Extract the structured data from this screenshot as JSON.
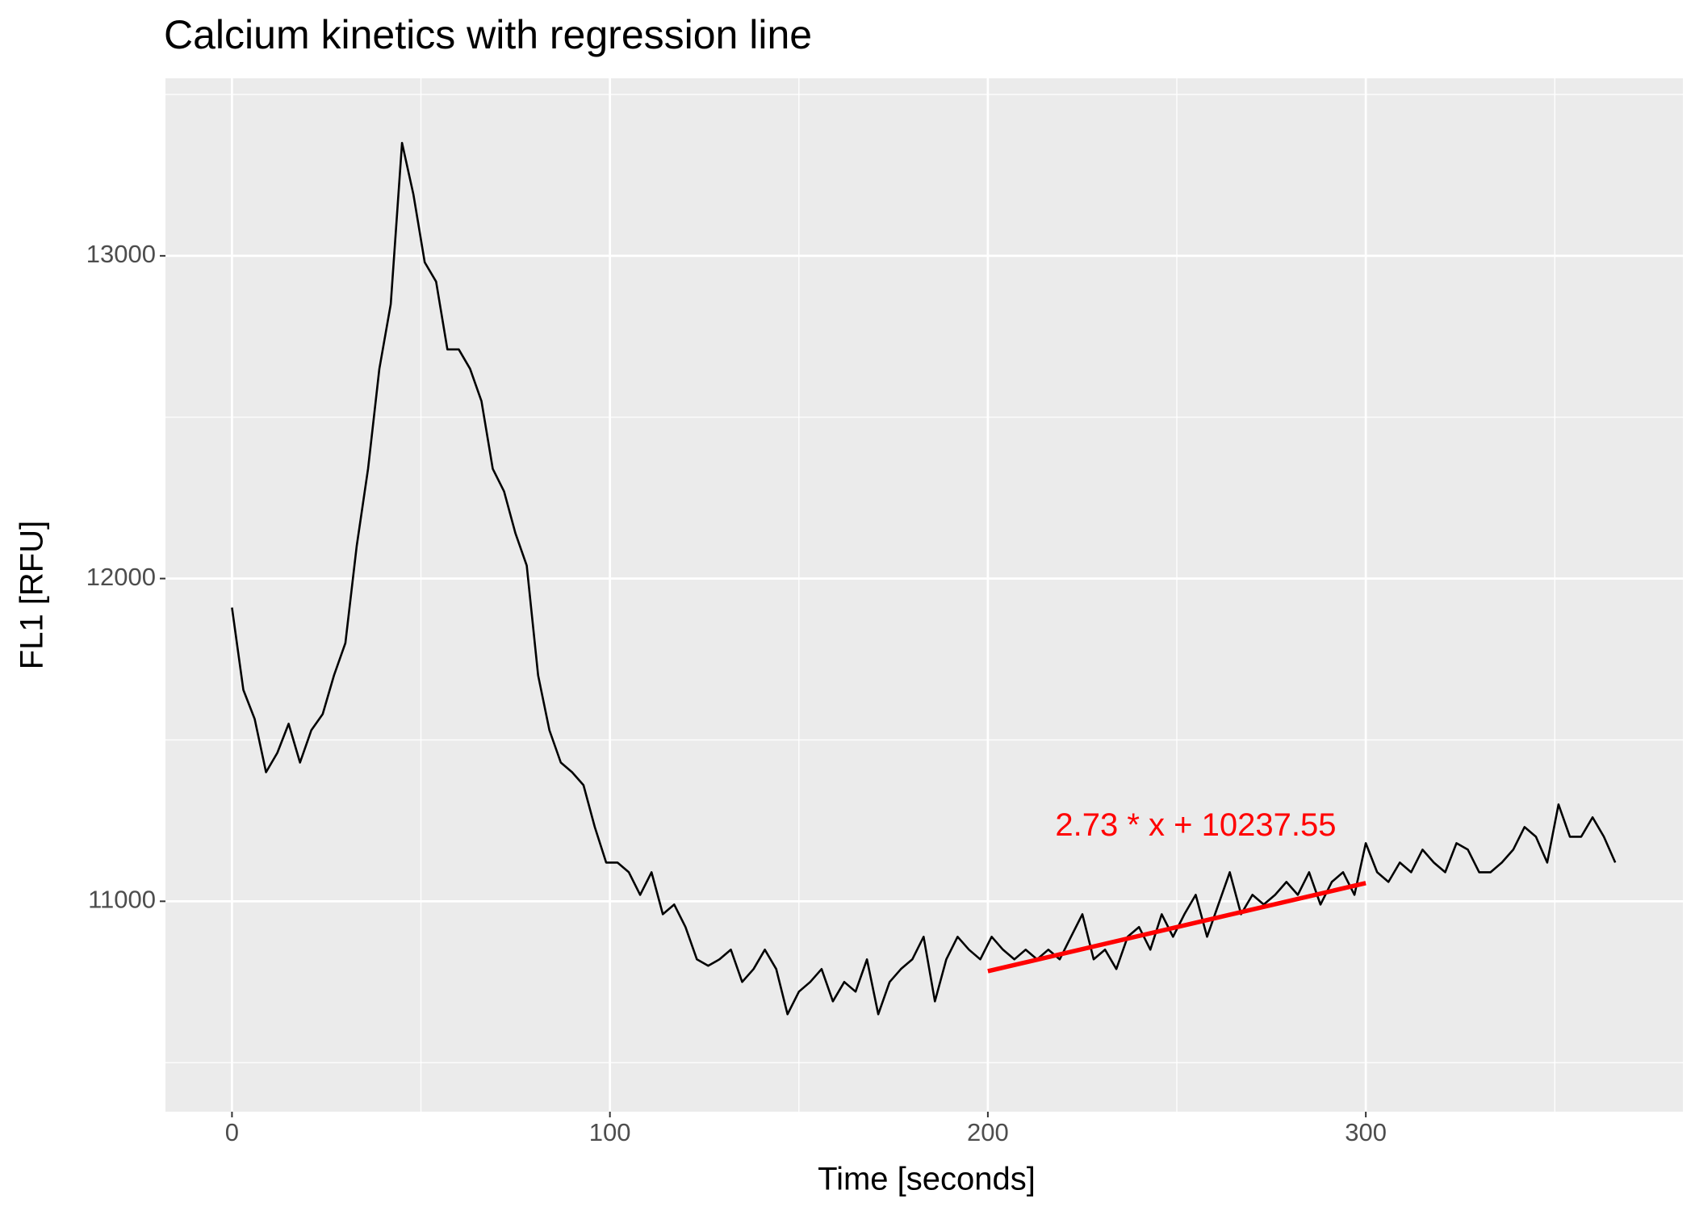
{
  "chart_data": {
    "type": "line",
    "title": "Calcium kinetics with regression line",
    "x_label": "Time [seconds]",
    "y_label": "FL1 [RFU]",
    "xlim": [
      -17.6,
      383.9
    ],
    "ylim": [
      10348,
      13550
    ],
    "xticks": [
      0,
      100,
      200,
      300
    ],
    "yticks": [
      11000,
      12000,
      13000
    ],
    "grid": true,
    "series": [
      {
        "name": "FL1",
        "color": "#000000",
        "x": [
          0,
          3,
          6,
          9,
          12,
          15,
          18,
          21,
          24,
          27,
          30,
          33,
          36,
          39,
          42,
          45,
          48,
          51,
          54,
          57,
          60,
          63,
          66,
          69,
          72,
          75,
          78,
          81,
          84,
          87,
          90,
          93,
          96,
          99,
          102,
          105,
          108,
          111,
          114,
          117,
          120,
          123,
          126,
          129,
          132,
          135,
          138,
          141,
          144,
          147,
          150,
          153,
          156,
          159,
          162,
          165,
          168,
          171,
          174,
          177,
          180,
          183,
          186,
          189,
          192,
          195,
          198,
          201,
          204,
          207,
          210,
          213,
          216,
          219,
          222,
          225,
          228,
          231,
          234,
          237,
          240,
          243,
          246,
          249,
          252,
          255,
          258,
          261,
          264,
          267,
          270,
          273,
          276,
          279,
          282,
          285,
          288,
          291,
          294,
          297,
          300,
          303,
          306,
          309,
          312,
          315,
          318,
          321,
          324,
          327,
          330,
          333,
          336,
          339,
          342,
          345,
          348,
          351,
          354,
          357,
          360,
          363,
          366
        ],
        "values": [
          11910,
          11655,
          11565,
          11400,
          11460,
          11550,
          11430,
          11530,
          11580,
          11700,
          11800,
          12100,
          12340,
          12650,
          12850,
          13350,
          13190,
          12980,
          12920,
          12710,
          12710,
          12650,
          12550,
          12340,
          12270,
          12140,
          12040,
          11700,
          11530,
          11430,
          11400,
          11360,
          11230,
          11120,
          11120,
          11090,
          11020,
          11090,
          10960,
          10990,
          10920,
          10820,
          10800,
          10820,
          10850,
          10750,
          10790,
          10850,
          10790,
          10650,
          10720,
          10750,
          10790,
          10690,
          10750,
          10720,
          10820,
          10650,
          10750,
          10790,
          10820,
          10890,
          10690,
          10820,
          10890,
          10850,
          10820,
          10890,
          10850,
          10820,
          10850,
          10820,
          10850,
          10820,
          10890,
          10960,
          10820,
          10850,
          10790,
          10890,
          10920,
          10850,
          10960,
          10890,
          10960,
          11020,
          10890,
          10990,
          11090,
          10960,
          11020,
          10990,
          11020,
          11060,
          11020,
          11090,
          10990,
          11060,
          11090,
          11020,
          11180,
          11090,
          11060,
          11120,
          11090,
          11160,
          11120,
          11090,
          11180,
          11160,
          11090,
          11090,
          11120,
          11160,
          11230,
          11200,
          11120,
          11300,
          11200,
          11200,
          11260,
          11200,
          11120
        ]
      },
      {
        "name": "regression",
        "color": "#ff0000",
        "x": [
          200,
          300
        ],
        "values": [
          10783.55,
          11056.55
        ]
      }
    ],
    "annotation": {
      "text": "2.73 * x + 10237.55",
      "x": 255,
      "y": 11230,
      "color": "#ff0000"
    }
  }
}
